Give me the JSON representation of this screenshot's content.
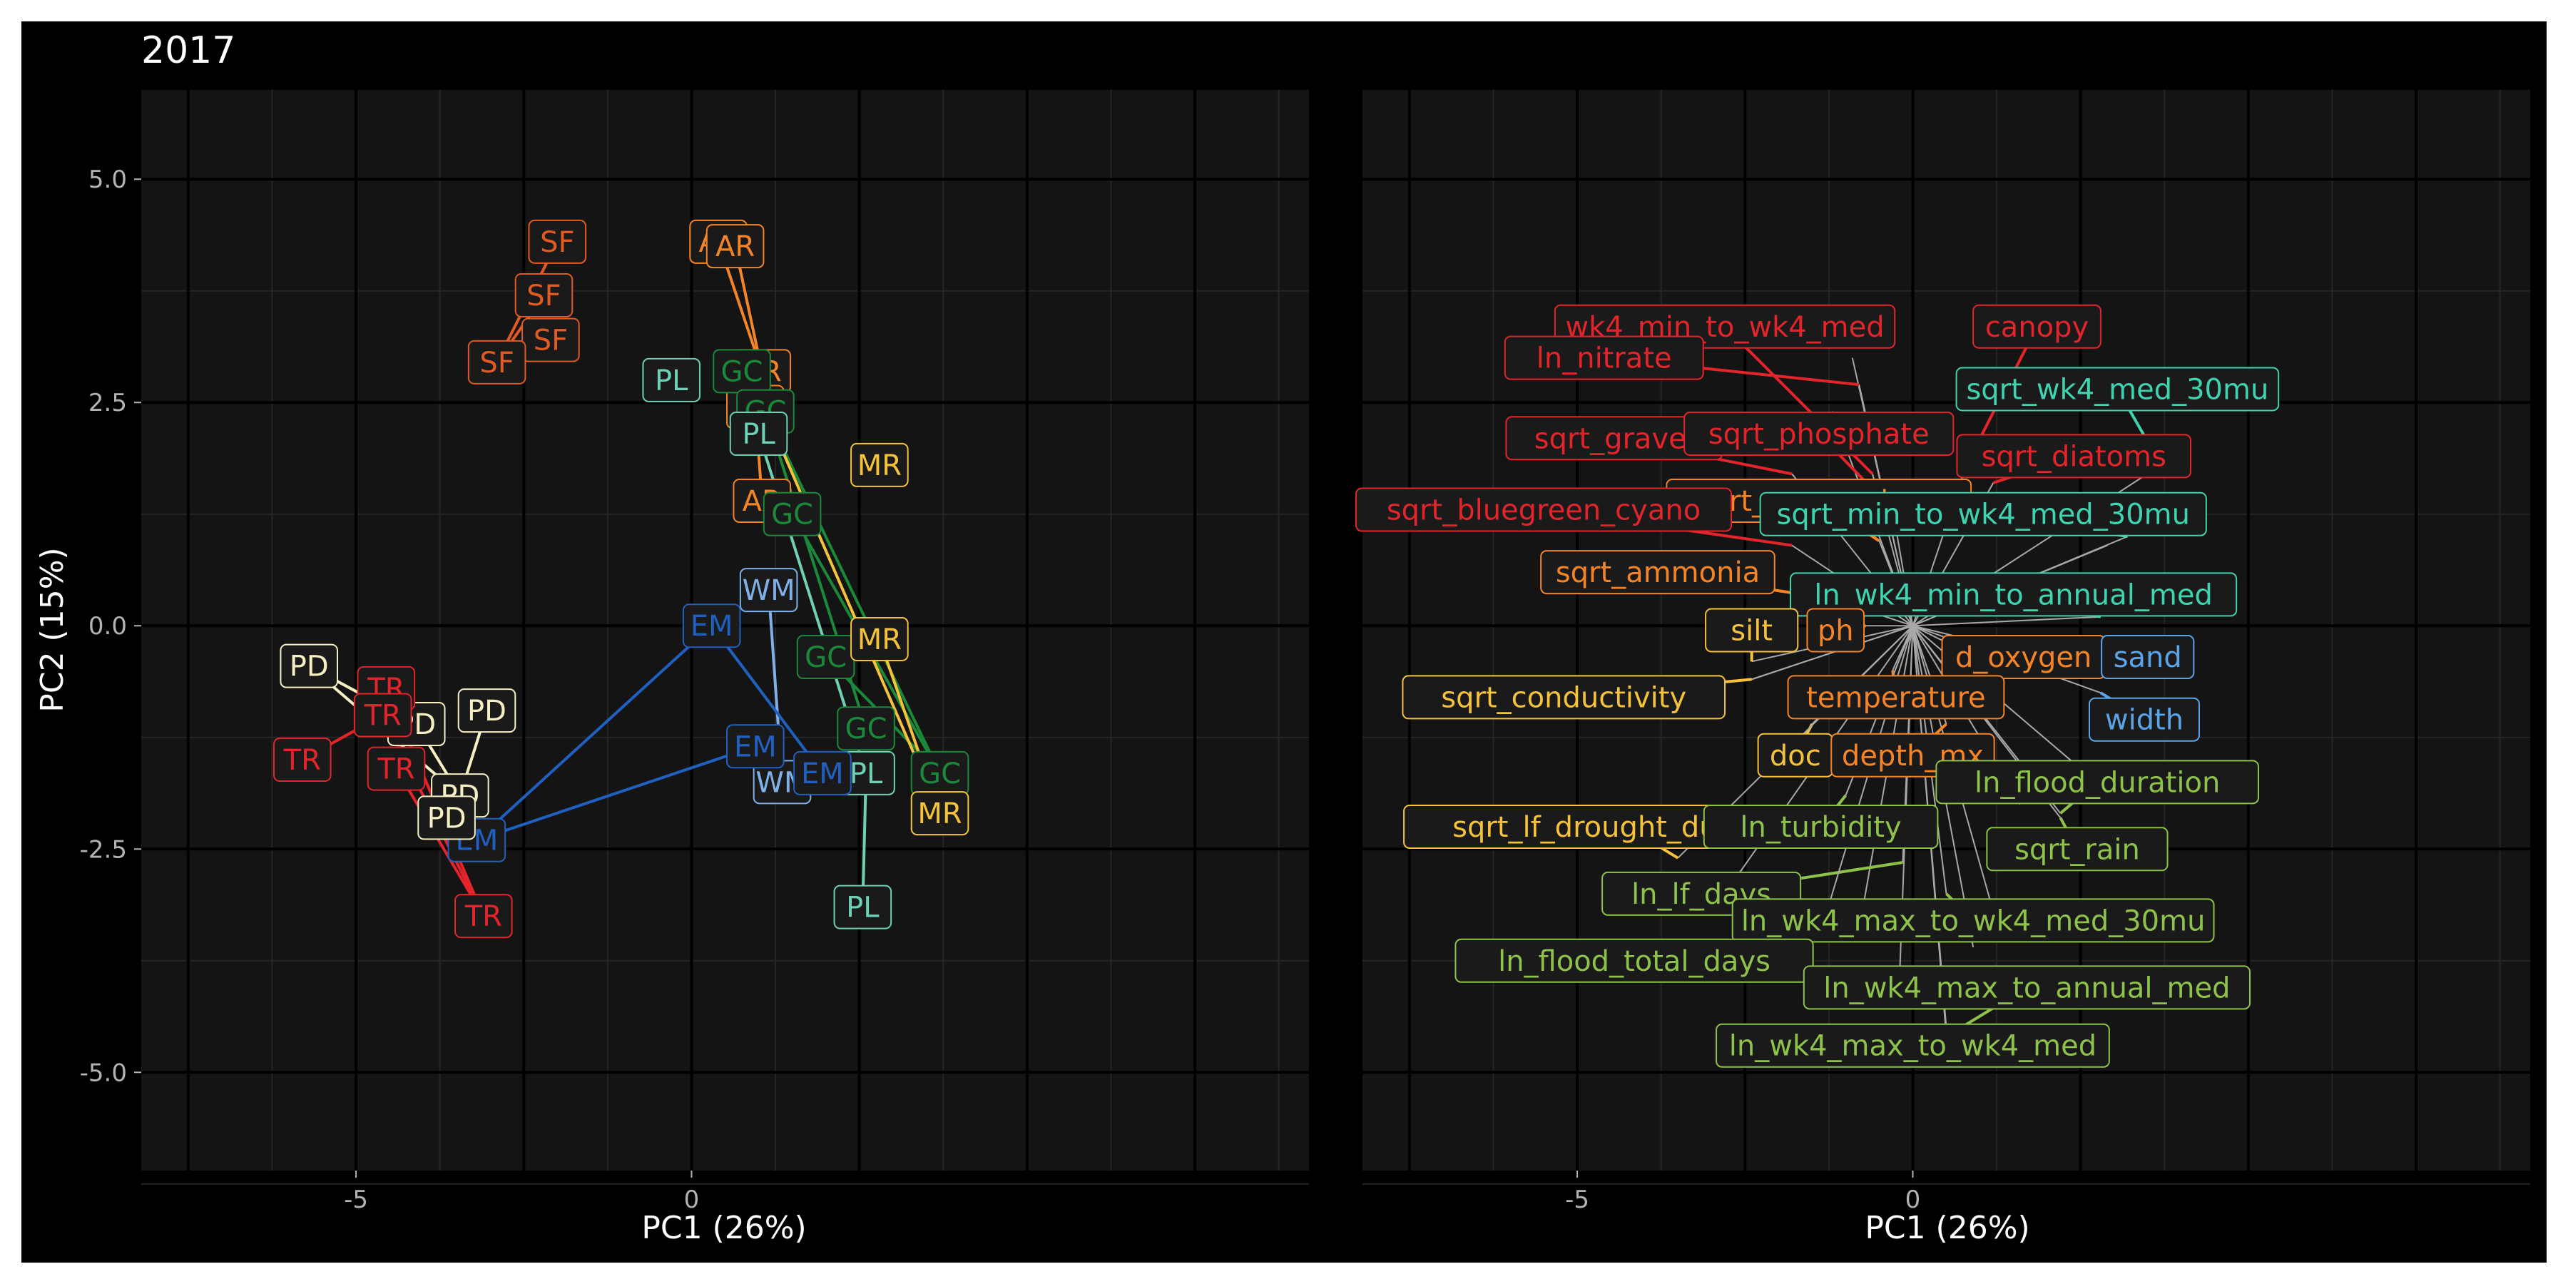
{
  "colors": {
    "outer_background": "#000000",
    "page_border": "#ffffff",
    "panel_background": "#141414",
    "grid_major": "#000000",
    "grid_minor": "#262626",
    "axis_text": "#b3b3b3",
    "title_text": "#ffffff",
    "loading_line": "#a8a8a8"
  },
  "chart_data": {
    "type": "scatter",
    "title": "2017",
    "ylabel": "PC2 (15%)",
    "panels": [
      {
        "id": "sites",
        "xlabel": "PC1 (26%)",
        "xlim": [
          -8.2,
          9.2
        ],
        "ylim": [
          -6.1,
          6.0
        ],
        "x_ticks": [
          -5,
          0
        ],
        "y_ticks": [
          5.0,
          2.5,
          0.0,
          -2.5,
          -5.0
        ],
        "y_tick_labels": [
          "5.0",
          "2.5",
          "0.0",
          "-2.5",
          "-5.0"
        ],
        "series": [
          {
            "group": "SF",
            "color": "#e05a22",
            "points": [
              {
                "x": -2.0,
                "y": 4.3
              },
              {
                "x": -2.2,
                "y": 3.7
              },
              {
                "x": -2.1,
                "y": 3.2
              },
              {
                "x": -2.9,
                "y": 2.95
              }
            ],
            "paths": [
              [
                [
                  -2.0,
                  4.3
                ],
                [
                  -2.9,
                  2.95
                ]
              ],
              [
                [
                  -2.2,
                  3.7
                ],
                [
                  -2.9,
                  2.95
                ]
              ],
              [
                [
                  -2.1,
                  3.2
                ],
                [
                  -2.9,
                  2.95
                ]
              ]
            ]
          },
          {
            "group": "AR",
            "color": "#f58426",
            "points": [
              {
                "x": 0.4,
                "y": 4.3
              },
              {
                "x": 0.65,
                "y": 4.25
              },
              {
                "x": 1.05,
                "y": 2.85
              },
              {
                "x": 0.95,
                "y": 2.45
              },
              {
                "x": 1.05,
                "y": 1.4
              }
            ],
            "paths": [
              [
                [
                  0.4,
                  4.3
                ],
                [
                  1.05,
                  2.85
                ]
              ],
              [
                [
                  0.65,
                  4.25
                ],
                [
                  1.05,
                  2.85
                ]
              ],
              [
                [
                  1.05,
                  2.85
                ],
                [
                  0.95,
                  2.45
                ]
              ],
              [
                [
                  0.95,
                  2.45
                ],
                [
                  1.05,
                  1.4
                ]
              ]
            ]
          },
          {
            "group": "GC",
            "color": "#1a8a3a",
            "points": [
              {
                "x": 0.75,
                "y": 2.85
              },
              {
                "x": 1.1,
                "y": 2.4
              },
              {
                "x": 1.5,
                "y": 1.25
              },
              {
                "x": 2.0,
                "y": -0.35
              },
              {
                "x": 2.6,
                "y": -1.15
              },
              {
                "x": 3.7,
                "y": -1.65
              }
            ],
            "paths": [
              [
                [
                  0.75,
                  2.85
                ],
                [
                  1.1,
                  2.4
                ]
              ],
              [
                [
                  1.1,
                  2.4
                ],
                [
                  3.7,
                  -1.65
                ]
              ],
              [
                [
                  1.1,
                  2.4
                ],
                [
                  2.6,
                  -1.15
                ]
              ],
              [
                [
                  1.5,
                  1.25
                ],
                [
                  3.7,
                  -1.65
                ]
              ],
              [
                [
                  2.0,
                  -0.35
                ],
                [
                  3.7,
                  -1.65
                ]
              ]
            ]
          },
          {
            "group": "PL",
            "color": "#6fd0b8",
            "points": [
              {
                "x": -0.3,
                "y": 2.75
              },
              {
                "x": 1.0,
                "y": 2.15
              },
              {
                "x": 2.6,
                "y": -1.65
              },
              {
                "x": 2.55,
                "y": -3.15
              }
            ],
            "paths": [
              [
                [
                  1.0,
                  2.15
                ],
                [
                  2.6,
                  -1.65
                ]
              ],
              [
                [
                  2.6,
                  -1.65
                ],
                [
                  2.55,
                  -3.15
                ]
              ]
            ]
          },
          {
            "group": "MR",
            "color": "#f5c23a",
            "points": [
              {
                "x": 2.8,
                "y": 1.8
              },
              {
                "x": 2.8,
                "y": -0.15
              },
              {
                "x": 3.7,
                "y": -2.1
              }
            ],
            "paths": [
              [
                [
                  2.8,
                  -0.15
                ],
                [
                  3.7,
                  -2.1
                ]
              ],
              [
                [
                  1.1,
                  2.4
                ],
                [
                  3.7,
                  -2.1
                ]
              ]
            ]
          },
          {
            "group": "WM",
            "color": "#7fb0e8",
            "points": [
              {
                "x": 1.15,
                "y": 0.4
              },
              {
                "x": 1.35,
                "y": -1.75
              }
            ],
            "paths": [
              [
                [
                  1.15,
                  0.4
                ],
                [
                  1.35,
                  -1.75
                ]
              ]
            ]
          },
          {
            "group": "EM",
            "color": "#2060c0",
            "points": [
              {
                "x": 0.3,
                "y": 0.0
              },
              {
                "x": 0.95,
                "y": -1.35
              },
              {
                "x": 1.95,
                "y": -1.65
              },
              {
                "x": -3.2,
                "y": -2.4
              }
            ],
            "paths": [
              [
                [
                  0.3,
                  0.0
                ],
                [
                  -3.2,
                  -2.4
                ]
              ],
              [
                [
                  0.3,
                  0.0
                ],
                [
                  1.95,
                  -1.65
                ]
              ],
              [
                [
                  0.95,
                  -1.35
                ],
                [
                  -3.2,
                  -2.4
                ]
              ]
            ]
          },
          {
            "group": "PD",
            "color": "#f7efc4",
            "points": [
              {
                "x": -5.7,
                "y": -0.45
              },
              {
                "x": -3.05,
                "y": -0.95
              },
              {
                "x": -4.1,
                "y": -1.1
              },
              {
                "x": -3.45,
                "y": -1.9
              },
              {
                "x": -3.65,
                "y": -2.15
              }
            ],
            "paths": [
              [
                [
                  -5.7,
                  -0.45
                ],
                [
                  -4.1,
                  -1.1
                ]
              ],
              [
                [
                  -5.7,
                  -0.45
                ],
                [
                  -3.45,
                  -1.9
                ]
              ],
              [
                [
                  -3.05,
                  -0.95
                ],
                [
                  -3.45,
                  -1.9
                ]
              ],
              [
                [
                  -4.1,
                  -1.1
                ],
                [
                  -3.45,
                  -1.9
                ]
              ]
            ]
          },
          {
            "group": "TR",
            "color": "#e3252b",
            "points": [
              {
                "x": -4.55,
                "y": -0.7
              },
              {
                "x": -4.6,
                "y": -1.0
              },
              {
                "x": -5.8,
                "y": -1.5
              },
              {
                "x": -4.4,
                "y": -1.6
              },
              {
                "x": -3.1,
                "y": -3.25
              }
            ],
            "paths": [
              [
                [
                  -5.8,
                  -1.5
                ],
                [
                  -4.6,
                  -1.0
                ]
              ],
              [
                [
                  -4.55,
                  -0.7
                ],
                [
                  -3.1,
                  -3.25
                ]
              ],
              [
                [
                  -4.6,
                  -1.0
                ],
                [
                  -3.1,
                  -3.25
                ]
              ],
              [
                [
                  -4.4,
                  -1.6
                ],
                [
                  -3.1,
                  -3.25
                ]
              ]
            ]
          }
        ]
      },
      {
        "id": "loadings",
        "xlabel": "PC1 (26%)",
        "xlim": [
          -8.2,
          9.2
        ],
        "ylim": [
          -6.1,
          6.0
        ],
        "x_ticks": [
          -5,
          0
        ],
        "origin": [
          0,
          0
        ],
        "loadings": [
          {
            "label": "wk4_min_to_wk4_med",
            "color": "#e3252b",
            "x": -2.8,
            "y": 3.35,
            "end": [
              -0.6,
              1.7
            ]
          },
          {
            "label": "canopy",
            "color": "#e3252b",
            "x": 1.85,
            "y": 3.35,
            "end": [
              0.8,
              1.8
            ]
          },
          {
            "label": "ln_nitrate",
            "color": "#e3252b",
            "x": -4.6,
            "y": 3.0,
            "end": [
              -0.8,
              2.7
            ]
          },
          {
            "label": "sqrt_wk4_med_30mu",
            "color": "#3fd4b0",
            "x": 3.05,
            "y": 2.65,
            "end": [
              3.7,
              1.8
            ]
          },
          {
            "label": "sqrt_gravel",
            "color": "#e3252b",
            "x": -4.45,
            "y": 2.1,
            "end": [
              -1.8,
              1.7
            ]
          },
          {
            "label": "sqrt_phosphate",
            "color": "#e3252b",
            "x": -1.4,
            "y": 2.15,
            "end": [
              -0.3,
              1.3
            ]
          },
          {
            "label": "sqrt_diatoms",
            "color": "#e3252b",
            "x": 2.4,
            "y": 1.9,
            "end": [
              1.2,
              1.6
            ]
          },
          {
            "label": "sqrt_green_algae",
            "color": "#f58426",
            "x": -1.4,
            "y": 1.4,
            "end": [
              -0.5,
              0.95
            ]
          },
          {
            "label": "sqrt_bluegreen_cyano",
            "color": "#e3252b",
            "x": -5.5,
            "y": 1.3,
            "end": [
              -1.8,
              0.9
            ]
          },
          {
            "label": "sqrt_min_to_wk4_med_30mu",
            "color": "#3fd4b0",
            "x": 1.05,
            "y": 1.25,
            "end": [
              3.2,
              1.0
            ]
          },
          {
            "label": "sqrt_ammonia",
            "color": "#f58426",
            "x": -3.8,
            "y": 0.6,
            "end": [
              -1.2,
              0.3
            ]
          },
          {
            "label": "ln_wk4_min_to_annual_med",
            "color": "#3fd4b0",
            "x": 1.5,
            "y": 0.35,
            "end": [
              2.8,
              0.1
            ]
          },
          {
            "label": "silt",
            "color": "#f5c23a",
            "x": -2.4,
            "y": -0.05,
            "end": [
              -2.4,
              -0.4
            ]
          },
          {
            "label": "ph",
            "color": "#f58426",
            "x": -1.15,
            "y": -0.05,
            "end": [
              -0.7,
              0.0
            ]
          },
          {
            "label": "d_oxygen",
            "color": "#f58426",
            "x": 1.65,
            "y": -0.35,
            "end": [
              1.2,
              -0.45
            ]
          },
          {
            "label": "sand",
            "color": "#5aa4e8",
            "x": 3.5,
            "y": -0.35,
            "end": [
              3.0,
              -0.55
            ]
          },
          {
            "label": "sqrt_conductivity",
            "color": "#f5c23a",
            "x": -5.2,
            "y": -0.8,
            "end": [
              -2.4,
              -0.6
            ]
          },
          {
            "label": "temperature",
            "color": "#f58426",
            "x": -0.25,
            "y": -0.8,
            "end": [
              -0.3,
              -0.5
            ]
          },
          {
            "label": "width",
            "color": "#5aa4e8",
            "x": 3.45,
            "y": -1.05,
            "end": [
              2.8,
              -0.75
            ]
          },
          {
            "label": "doc",
            "color": "#f5c23a",
            "x": -1.75,
            "y": -1.45,
            "end": [
              -1.5,
              -1.1
            ]
          },
          {
            "label": "depth_mx",
            "color": "#f58426",
            "x": 0.0,
            "y": -1.45,
            "end": [
              0.5,
              -1.1
            ]
          },
          {
            "label": "ln_flood_duration",
            "color": "#8ec24a",
            "x": 2.75,
            "y": -1.75,
            "end": [
              2.2,
              -2.1
            ]
          },
          {
            "label": "sqrt_lf_drought_duration",
            "color": "#f5c23a",
            "x": -4.26,
            "y": -2.25,
            "end": [
              -3.5,
              -2.6
            ]
          },
          {
            "label": "ln_turbidity",
            "color": "#8ec24a",
            "x": -1.37,
            "y": -2.25,
            "end": [
              -1.0,
              -1.9
            ]
          },
          {
            "label": "sqrt_rain",
            "color": "#8ec24a",
            "x": 2.45,
            "y": -2.5,
            "end": [
              2.2,
              -2.15
            ]
          },
          {
            "label": "ln_lf_days",
            "color": "#8ec24a",
            "x": -3.15,
            "y": -3.0,
            "end": [
              -0.15,
              -2.65
            ]
          },
          {
            "label": "ln_wk4_max_to_wk4_med_30mu",
            "color": "#8ec24a",
            "x": 0.9,
            "y": -3.3,
            "end": [
              0.5,
              -3.0
            ]
          },
          {
            "label": "ln_flood_total_days",
            "color": "#8ec24a",
            "x": -4.15,
            "y": -3.75,
            "end": [
              -1.4,
              -3.5
            ]
          },
          {
            "label": "ln_wk4_max_to_annual_med",
            "color": "#8ec24a",
            "x": 1.7,
            "y": -4.05,
            "end": [
              0.5,
              -4.6
            ]
          },
          {
            "label": "ln_wk4_max_to_wk4_med",
            "color": "#8ec24a",
            "x": 0.0,
            "y": -4.7,
            "end": [
              0.5,
              -4.5
            ]
          }
        ],
        "extra_rays": [
          [
            -2.4,
            -0.6
          ],
          [
            -2.8,
            -3.0
          ],
          [
            -0.8,
            -3.4
          ],
          [
            1.2,
            -3.2
          ],
          [
            0.9,
            -3.6
          ],
          [
            2.5,
            -1.6
          ],
          [
            2.9,
            0.9
          ],
          [
            -0.9,
            3.0
          ],
          [
            -1.2,
            2.4
          ],
          [
            1.6,
            -2.0
          ],
          [
            -0.2,
            -4.0
          ]
        ]
      }
    ]
  }
}
